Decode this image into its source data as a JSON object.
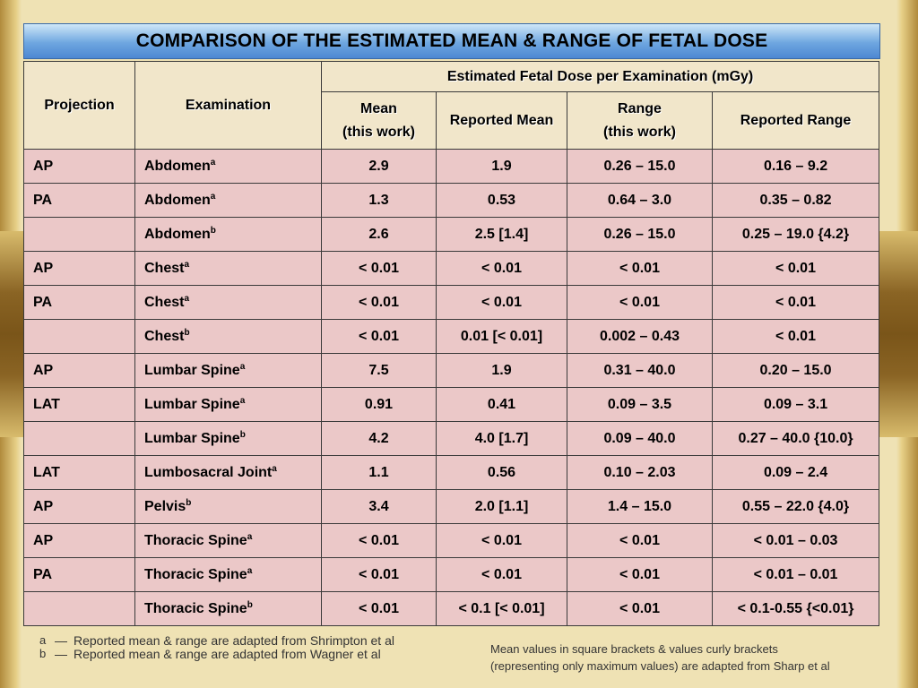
{
  "title": "COMPARISON OF THE ESTIMATED MEAN & RANGE OF FETAL DOSE",
  "headers": {
    "projection": "Projection",
    "examination": "Examination",
    "group": "Estimated Fetal Dose per Examination (mGy)",
    "mean_line1": "Mean",
    "mean_line2": "(this work)",
    "reported_mean": "Reported Mean",
    "range_line1": "Range",
    "range_line2": "(this work)",
    "reported_range": "Reported Range"
  },
  "rows": [
    {
      "projection": "AP",
      "exam": "Abdomen",
      "sup": "a",
      "mean": "2.9",
      "reported_mean": "1.9",
      "range": "0.26 – 15.0",
      "reported_range": "0.16 – 9.2"
    },
    {
      "projection": "PA",
      "exam": "Abdomen",
      "sup": "a",
      "mean": "1.3",
      "reported_mean": "0.53",
      "range": "0.64 – 3.0",
      "reported_range": "0.35 – 0.82"
    },
    {
      "projection": "",
      "exam": "Abdomen",
      "sup": "b",
      "mean": "2.6",
      "reported_mean": "2.5 [1.4]",
      "range": "0.26 – 15.0",
      "reported_range": "0.25 – 19.0 {4.2}"
    },
    {
      "projection": "AP",
      "exam": "Chest",
      "sup": "a",
      "mean": "< 0.01",
      "reported_mean": "< 0.01",
      "range": "< 0.01",
      "reported_range": "< 0.01"
    },
    {
      "projection": "PA",
      "exam": "Chest",
      "sup": "a",
      "mean": "< 0.01",
      "reported_mean": "< 0.01",
      "range": "< 0.01",
      "reported_range": "< 0.01"
    },
    {
      "projection": "",
      "exam": "Chest",
      "sup": "b",
      "mean": "< 0.01",
      "reported_mean": "0.01 [< 0.01]",
      "range": "0.002 – 0.43",
      "reported_range": "< 0.01"
    },
    {
      "projection": "AP",
      "exam": "Lumbar Spine",
      "sup": "a",
      "mean": "7.5",
      "reported_mean": "1.9",
      "range": "0.31 – 40.0",
      "reported_range": "0.20 – 15.0"
    },
    {
      "projection": "LAT",
      "exam": "Lumbar Spine",
      "sup": "a",
      "mean": "0.91",
      "reported_mean": "0.41",
      "range": "0.09 – 3.5",
      "reported_range": "0.09 – 3.1"
    },
    {
      "projection": "",
      "exam": "Lumbar Spine",
      "sup": "b",
      "mean": "4.2",
      "reported_mean": "4.0 [1.7]",
      "range": "0.09 – 40.0",
      "reported_range": "0.27 – 40.0 {10.0}"
    },
    {
      "projection": "LAT",
      "exam": "Lumbosacral Joint",
      "sup": "a",
      "mean": "1.1",
      "reported_mean": "0.56",
      "range": "0.10 – 2.03",
      "reported_range": "0.09 – 2.4"
    },
    {
      "projection": "AP",
      "exam": "Pelvis",
      "sup": "b",
      "mean": "3.4",
      "reported_mean": "2.0 [1.1]",
      "range": "1.4 – 15.0",
      "reported_range": "0.55 – 22.0 {4.0}"
    },
    {
      "projection": "AP",
      "exam": "Thoracic Spine",
      "sup": "a",
      "mean": "< 0.01",
      "reported_mean": "< 0.01",
      "range": "< 0.01",
      "reported_range": "< 0.01 – 0.03"
    },
    {
      "projection": "PA",
      "exam": "Thoracic Spine",
      "sup": "a",
      "mean": "< 0.01",
      "reported_mean": "< 0.01",
      "range": "< 0.01",
      "reported_range": "< 0.01 – 0.01"
    },
    {
      "projection": "",
      "exam": "Thoracic Spine",
      "sup": "b",
      "mean": "< 0.01",
      "reported_mean": "< 0.1 [< 0.01]",
      "range": "< 0.01",
      "reported_range": "< 0.1-0.55 {<0.01}"
    }
  ],
  "footnotes": {
    "a_mark": "a",
    "a_text": "Reported mean & range are adapted from Shrimpton et al",
    "b_mark": "b",
    "b_text": "Reported mean & range are adapted from Wagner et al",
    "dash": "—",
    "right_line1": "Mean values in square brackets & values curly brackets",
    "right_line2": "(representing only maximum values) are adapted from Sharp et al"
  }
}
